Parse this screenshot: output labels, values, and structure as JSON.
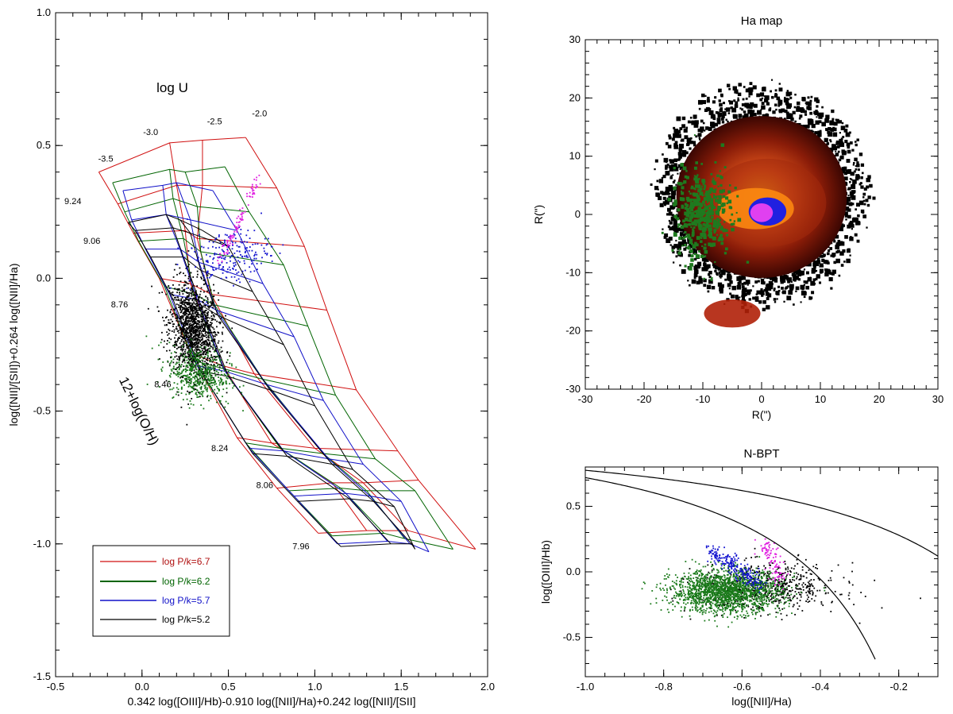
{
  "chart_data": [
    {
      "type": "scatter",
      "panel": "grid-diagnostic",
      "title": "",
      "xlabel": "0.342 log([OIII]/Hb)-0.910 log([NII]/Ha)+0.242 log([NII]/[SII]",
      "ylabel": "log([NII]/[SII])+0.264 log([NII]/Ha)",
      "xlim": [
        -0.5,
        2.0
      ],
      "ylim": [
        -1.5,
        1.0
      ],
      "x_ticks": [
        "-0.5",
        "0.0",
        "0.5",
        "1.0",
        "1.5",
        "2.0"
      ],
      "y_ticks": [
        "-1.5",
        "-1.0",
        "-0.5",
        "0.0",
        "0.5",
        "1.0"
      ],
      "x_tick_values": [
        -0.5,
        0.0,
        0.5,
        1.0,
        1.5,
        2.0
      ],
      "y_tick_values": [
        -1.5,
        -1.0,
        -0.5,
        0.0,
        0.5,
        1.0
      ],
      "annotations": {
        "logU_title": "log U",
        "logU_labels": [
          {
            "text": "-3.5",
            "x": -0.21,
            "y": 0.44
          },
          {
            "text": "-3.0",
            "x": 0.05,
            "y": 0.54
          },
          {
            "text": "-2.5",
            "x": 0.42,
            "y": 0.58
          },
          {
            "text": "-2.0",
            "x": 0.68,
            "y": 0.61
          }
        ],
        "oh_title": "12+log(O/H)",
        "oh_labels": [
          {
            "text": "9.24",
            "x": -0.4,
            "y": 0.28
          },
          {
            "text": "9.06",
            "x": -0.29,
            "y": 0.13
          },
          {
            "text": "8.76",
            "x": -0.13,
            "y": -0.11
          },
          {
            "text": "8.46",
            "x": 0.12,
            "y": -0.41
          },
          {
            "text": "8.24",
            "x": 0.45,
            "y": -0.65
          },
          {
            "text": "8.06",
            "x": 0.71,
            "y": -0.79
          },
          {
            "text": "7.96",
            "x": 0.92,
            "y": -1.02
          }
        ]
      },
      "legend": [
        {
          "label": "log P/k=6.7",
          "color": "#d01010"
        },
        {
          "label": "log P/k=6.2",
          "color": "#006400"
        },
        {
          "label": "log P/k=5.7",
          "color": "#1010c8"
        },
        {
          "label": "log P/k=5.2",
          "color": "#000000"
        }
      ],
      "legend_position": "bottom-left",
      "grids": [
        {
          "name": "log P/k=6.7",
          "color": "#d01010",
          "rows": [
            [
              [
                -0.25,
                0.4
              ],
              [
                0.16,
                0.51
              ],
              [
                0.35,
                0.52
              ],
              [
                0.6,
                0.53
              ]
            ],
            [
              [
                -0.14,
                0.28
              ],
              [
                0.2,
                0.35
              ],
              [
                0.35,
                0.35
              ],
              [
                0.78,
                0.34
              ]
            ],
            [
              [
                -0.05,
                0.17
              ],
              [
                0.25,
                0.18
              ],
              [
                0.32,
                0.15
              ],
              [
                0.94,
                0.12
              ]
            ],
            [
              [
                0.1,
                0.0
              ],
              [
                0.28,
                -0.02
              ],
              [
                0.4,
                -0.06
              ],
              [
                1.07,
                -0.12
              ]
            ],
            [
              [
                0.28,
                -0.28
              ],
              [
                0.47,
                -0.33
              ],
              [
                0.65,
                -0.36
              ],
              [
                1.24,
                -0.42
              ]
            ],
            [
              [
                0.55,
                -0.6
              ],
              [
                0.75,
                -0.62
              ],
              [
                1.0,
                -0.64
              ],
              [
                1.48,
                -0.65
              ]
            ],
            [
              [
                0.78,
                -0.79
              ],
              [
                1.1,
                -0.77
              ],
              [
                1.28,
                -0.77
              ],
              [
                1.6,
                -0.76
              ]
            ],
            [
              [
                1.02,
                -0.96
              ],
              [
                1.3,
                -0.95
              ],
              [
                1.54,
                -0.95
              ],
              [
                1.93,
                -1.02
              ]
            ]
          ]
        },
        {
          "name": "log P/k=6.2",
          "color": "#006400",
          "rows": [
            [
              [
                -0.17,
                0.36
              ],
              [
                0.16,
                0.41
              ],
              [
                0.25,
                0.4
              ],
              [
                0.48,
                0.42
              ]
            ],
            [
              [
                -0.1,
                0.25
              ],
              [
                0.18,
                0.3
              ],
              [
                0.32,
                0.27
              ],
              [
                0.62,
                0.25
              ]
            ],
            [
              [
                -0.02,
                0.14
              ],
              [
                0.24,
                0.15
              ],
              [
                0.34,
                0.1
              ],
              [
                0.82,
                0.05
              ]
            ],
            [
              [
                0.13,
                -0.03
              ],
              [
                0.3,
                -0.06
              ],
              [
                0.42,
                -0.1
              ],
              [
                0.96,
                -0.18
              ]
            ],
            [
              [
                0.3,
                -0.31
              ],
              [
                0.47,
                -0.34
              ],
              [
                0.7,
                -0.38
              ],
              [
                1.12,
                -0.44
              ]
            ],
            [
              [
                0.6,
                -0.62
              ],
              [
                0.8,
                -0.64
              ],
              [
                1.05,
                -0.66
              ],
              [
                1.35,
                -0.68
              ]
            ],
            [
              [
                0.85,
                -0.8
              ],
              [
                1.15,
                -0.79
              ],
              [
                1.3,
                -0.8
              ],
              [
                1.58,
                -0.8
              ]
            ],
            [
              [
                1.1,
                -0.97
              ],
              [
                1.4,
                -0.96
              ],
              [
                1.52,
                -0.98
              ],
              [
                1.8,
                -1.02
              ]
            ]
          ]
        },
        {
          "name": "log P/k=5.7",
          "color": "#1010c8",
          "rows": [
            [
              [
                -0.11,
                0.33
              ],
              [
                0.12,
                0.35
              ],
              [
                0.2,
                0.36
              ],
              [
                0.41,
                0.33
              ]
            ],
            [
              [
                -0.06,
                0.22
              ],
              [
                0.14,
                0.24
              ],
              [
                0.28,
                0.22
              ],
              [
                0.55,
                0.18
              ]
            ],
            [
              [
                0.02,
                0.11
              ],
              [
                0.22,
                0.11
              ],
              [
                0.33,
                0.06
              ],
              [
                0.7,
                -0.02
              ]
            ],
            [
              [
                0.16,
                -0.06
              ],
              [
                0.32,
                -0.08
              ],
              [
                0.43,
                -0.12
              ],
              [
                0.88,
                -0.22
              ]
            ],
            [
              [
                0.32,
                -0.33
              ],
              [
                0.48,
                -0.35
              ],
              [
                0.72,
                -0.4
              ],
              [
                1.05,
                -0.46
              ]
            ],
            [
              [
                0.62,
                -0.64
              ],
              [
                0.82,
                -0.65
              ],
              [
                1.08,
                -0.68
              ],
              [
                1.28,
                -0.7
              ]
            ],
            [
              [
                0.88,
                -0.82
              ],
              [
                1.18,
                -0.81
              ],
              [
                1.32,
                -0.82
              ],
              [
                1.5,
                -0.84
              ]
            ],
            [
              [
                1.13,
                -1.0
              ],
              [
                1.42,
                -0.99
              ],
              [
                1.55,
                -1.0
              ],
              [
                1.66,
                -1.03
              ]
            ]
          ]
        },
        {
          "name": "log P/k=5.2",
          "color": "#000000",
          "rows": [
            [
              [
                -0.08,
                0.21
              ],
              [
                0.14,
                0.24
              ],
              [
                0.22,
                0.22
              ],
              [
                0.35,
                0.18
              ]
            ],
            [
              [
                -0.04,
                0.18
              ],
              [
                0.18,
                0.19
              ],
              [
                0.28,
                0.17
              ],
              [
                0.5,
                0.12
              ]
            ],
            [
              [
                0.05,
                0.08
              ],
              [
                0.24,
                0.08
              ],
              [
                0.34,
                0.03
              ],
              [
                0.64,
                -0.05
              ]
            ],
            [
              [
                0.18,
                -0.08
              ],
              [
                0.34,
                -0.1
              ],
              [
                0.44,
                -0.14
              ],
              [
                0.82,
                -0.25
              ]
            ],
            [
              [
                0.34,
                -0.35
              ],
              [
                0.5,
                -0.37
              ],
              [
                0.74,
                -0.42
              ],
              [
                1.0,
                -0.48
              ]
            ],
            [
              [
                0.64,
                -0.66
              ],
              [
                0.84,
                -0.67
              ],
              [
                1.1,
                -0.7
              ],
              [
                1.22,
                -0.72
              ]
            ],
            [
              [
                0.9,
                -0.84
              ],
              [
                1.2,
                -0.83
              ],
              [
                1.34,
                -0.84
              ],
              [
                1.46,
                -0.86
              ]
            ],
            [
              [
                1.15,
                -1.01
              ],
              [
                1.44,
                -1.0
              ],
              [
                1.56,
                -1.0
              ],
              [
                1.58,
                -1.02
              ]
            ]
          ]
        }
      ],
      "series": [
        {
          "name": "black spaxels",
          "color": "#000000",
          "n": 1400,
          "center": [
            0.3,
            -0.2
          ],
          "spread": [
            0.07,
            0.09
          ],
          "tilt": -0.9
        },
        {
          "name": "green spaxels",
          "color": "#1a7a1a",
          "n": 500,
          "center": [
            0.33,
            -0.36
          ],
          "spread": [
            0.09,
            0.05
          ],
          "tilt": -0.4
        },
        {
          "name": "blue spaxels",
          "color": "#1515d0",
          "n": 220,
          "center": [
            0.5,
            0.08
          ],
          "spread": [
            0.12,
            0.05
          ],
          "tilt": 0.5
        },
        {
          "name": "magenta spaxels",
          "color": "#e020e0",
          "n": 90,
          "from": [
            0.45,
            0.05
          ],
          "to": [
            0.67,
            0.38
          ]
        }
      ]
    },
    {
      "type": "heatmap",
      "panel": "ha-map",
      "title": "Ha map",
      "xlabel": "R(\")",
      "ylabel": "R(\")",
      "xlim": [
        -30,
        30
      ],
      "ylim": [
        -30,
        30
      ],
      "x_ticks": [
        "-30",
        "-20",
        "-10",
        "0",
        "10",
        "20",
        "30"
      ],
      "y_ticks": [
        "-30",
        "-20",
        "-10",
        "0",
        "10",
        "20",
        "30"
      ],
      "x_tick_values": [
        -30,
        -20,
        -10,
        0,
        10,
        20,
        30
      ],
      "y_tick_values": [
        -30,
        -20,
        -10,
        0,
        10,
        20,
        30
      ],
      "blobs": [
        {
          "name": "galaxy disk",
          "center": [
            0,
            3
          ],
          "radius": 17,
          "color": "#000000"
        },
        {
          "name": "halo",
          "center": [
            0,
            3
          ],
          "radius": 14.5,
          "color": "#5a0c04"
        },
        {
          "name": "inner disk",
          "center": [
            0,
            2
          ],
          "radius": 10,
          "color": "#a32a0c"
        },
        {
          "name": "bright core",
          "center": [
            0,
            1
          ],
          "radius": 5,
          "color": "#ff8c10"
        },
        {
          "name": "southern knot",
          "center": [
            -5,
            -17
          ],
          "radius": 3,
          "color": "#b02008"
        },
        {
          "name": "blue nucleus",
          "center": [
            1,
            0.5
          ],
          "radius": 3.2,
          "color": "#2020e0"
        },
        {
          "name": "magenta nucleus",
          "center": [
            0,
            0.3
          ],
          "radius": 1.6,
          "color": "#e040f0"
        }
      ],
      "green_region": {
        "center": [
          -10,
          0
        ],
        "spread": [
          4,
          6
        ],
        "n": 420,
        "color": "#1f7a1f"
      }
    },
    {
      "type": "scatter",
      "panel": "n-bpt",
      "title": "N-BPT",
      "xlabel": "log([NII]/Ha)",
      "ylabel": "log([OIII]/Hb)",
      "xlim": [
        -1.0,
        -0.1
      ],
      "ylim": [
        -0.8,
        0.8
      ],
      "x_ticks": [
        "-1.0",
        "-0.8",
        "-0.6",
        "-0.4",
        "-0.2"
      ],
      "y_ticks": [
        "-0.5",
        "0.0",
        "0.5"
      ],
      "x_tick_values": [
        -1.0,
        -0.8,
        -0.6,
        -0.4,
        -0.2
      ],
      "y_tick_values": [
        -0.5,
        0.0,
        0.5
      ],
      "curves": [
        {
          "name": "Kewley 2001",
          "formula": "0.61/(x-0.47)+1.19",
          "xrange": [
            -1.0,
            -0.1
          ]
        },
        {
          "name": "Kauffmann 2003",
          "formula": "0.61/(x-0.05)+1.30",
          "xrange": [
            -1.0,
            -0.26
          ]
        }
      ],
      "series": [
        {
          "name": "black spaxels",
          "color": "#000000",
          "n": 600,
          "center": [
            -0.53,
            -0.12
          ],
          "spread": [
            0.09,
            0.09
          ]
        },
        {
          "name": "green spaxels",
          "color": "#1a7a1a",
          "n": 1800,
          "center": [
            -0.64,
            -0.15
          ],
          "spread": [
            0.07,
            0.08
          ]
        },
        {
          "name": "blue spaxels",
          "color": "#1515d0",
          "n": 220,
          "from": [
            -0.68,
            0.16
          ],
          "to": [
            -0.55,
            -0.1
          ]
        },
        {
          "name": "magenta spaxels",
          "color": "#e020e0",
          "n": 100,
          "from": [
            -0.54,
            0.22
          ],
          "to": [
            -0.5,
            -0.08
          ]
        }
      ]
    }
  ]
}
